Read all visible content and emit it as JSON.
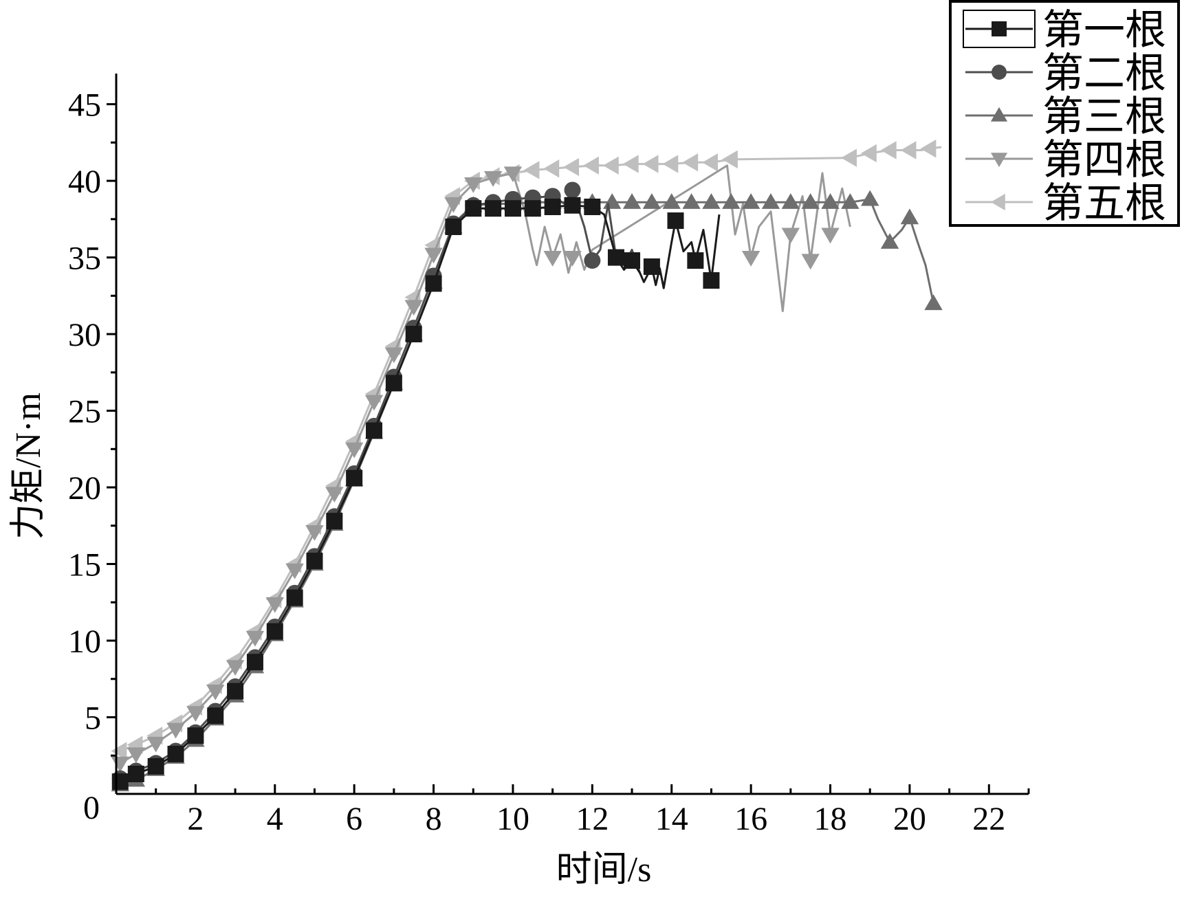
{
  "chart_data": {
    "type": "line",
    "xlabel": "时间/s",
    "ylabel": "力矩/N·m",
    "xlim": [
      0,
      23
    ],
    "ylim": [
      0,
      47
    ],
    "xticks": [
      2,
      4,
      6,
      8,
      10,
      12,
      14,
      16,
      18,
      20,
      22
    ],
    "yticks": [
      0,
      5,
      10,
      15,
      20,
      25,
      30,
      35,
      40,
      45
    ],
    "legend_position": "top-right",
    "series": [
      {
        "name": "第一根",
        "marker": "square",
        "color": "#1a1a1a",
        "x": [
          0.1,
          0.5,
          1.0,
          1.5,
          2.0,
          2.5,
          3.0,
          3.5,
          4.0,
          4.5,
          5.0,
          5.5,
          6.0,
          6.5,
          7.0,
          7.5,
          8.0,
          8.5,
          9.0,
          9.5,
          10.0,
          10.5,
          11.0,
          11.5,
          12.0,
          12.3,
          12.6,
          12.8,
          13.0,
          13.2,
          13.3,
          13.5,
          13.6,
          13.7,
          13.8,
          14.0,
          14.1,
          14.3,
          14.5,
          14.6,
          14.8,
          15.0,
          15.2
        ],
        "y": [
          0.8,
          1.3,
          1.8,
          2.6,
          3.8,
          5.1,
          6.7,
          8.6,
          10.6,
          12.8,
          15.2,
          17.8,
          20.6,
          23.7,
          26.8,
          30.0,
          33.3,
          37.0,
          38.2,
          38.2,
          38.2,
          38.2,
          38.3,
          38.4,
          38.3,
          37.8,
          35.0,
          34.2,
          34.8,
          34.0,
          33.4,
          34.4,
          33.2,
          34.3,
          33.0,
          36.0,
          37.4,
          35.4,
          36.0,
          34.8,
          36.8,
          33.5,
          37.8
        ],
        "markers_at": [
          0.1,
          0.5,
          1.0,
          1.5,
          2.0,
          2.5,
          3.0,
          3.5,
          4.0,
          4.5,
          5.0,
          5.5,
          6.0,
          6.5,
          7.0,
          7.5,
          8.0,
          8.5,
          9.0,
          9.5,
          10.0,
          10.5,
          11.0,
          11.5,
          12.0,
          12.6,
          13.0,
          13.5,
          14.1,
          14.6,
          15.0
        ]
      },
      {
        "name": "第二根",
        "marker": "circle",
        "color": "#4d4d4d",
        "x": [
          0.1,
          0.5,
          1.0,
          1.5,
          2.0,
          2.5,
          3.0,
          3.5,
          4.0,
          4.5,
          5.0,
          5.5,
          6.0,
          6.5,
          7.0,
          7.5,
          8.0,
          8.5,
          9.0,
          9.5,
          10.0,
          10.5,
          11.0,
          11.3,
          11.5,
          11.8,
          12.0,
          12.2,
          12.4,
          12.6,
          12.8,
          13.0,
          13.2
        ],
        "y": [
          1.0,
          1.5,
          2.0,
          2.8,
          4.0,
          5.4,
          7.0,
          8.9,
          10.9,
          13.1,
          15.5,
          18.1,
          20.9,
          24.0,
          27.2,
          30.4,
          33.8,
          37.2,
          38.4,
          38.6,
          38.8,
          38.9,
          39.0,
          38.5,
          39.4,
          37.0,
          34.8,
          35.5,
          38.5,
          35.0,
          34.5,
          35.5,
          34.0
        ],
        "markers_at": [
          0.1,
          0.5,
          1.0,
          1.5,
          2.0,
          2.5,
          3.0,
          3.5,
          4.0,
          4.5,
          5.0,
          5.5,
          6.0,
          6.5,
          7.0,
          7.5,
          8.0,
          8.5,
          9.0,
          9.5,
          10.0,
          10.5,
          11.0,
          11.5,
          12.0,
          12.6
        ]
      },
      {
        "name": "第三根",
        "marker": "triangle-up",
        "color": "#6e6e6e",
        "x": [
          0.1,
          0.5,
          1.0,
          1.5,
          2.0,
          2.5,
          3.0,
          3.5,
          4.0,
          4.5,
          5.0,
          5.5,
          6.0,
          6.5,
          7.0,
          7.5,
          8.0,
          8.5,
          9.0,
          9.5,
          10.0,
          10.5,
          11.0,
          11.5,
          12.0,
          12.5,
          13.0,
          13.5,
          14.0,
          14.5,
          15.0,
          15.5,
          16.0,
          16.5,
          17.0,
          17.5,
          18.0,
          18.5,
          19.0,
          19.2,
          19.5,
          19.8,
          20.0,
          20.2,
          20.4,
          20.6
        ],
        "y": [
          0.6,
          0.9,
          1.6,
          2.4,
          3.5,
          4.9,
          6.4,
          8.3,
          10.4,
          12.6,
          15.0,
          17.6,
          20.5,
          23.6,
          26.8,
          30.0,
          33.4,
          37.0,
          38.4,
          38.5,
          38.5,
          38.6,
          38.6,
          38.6,
          38.6,
          38.6,
          38.6,
          38.6,
          38.6,
          38.6,
          38.6,
          38.6,
          38.6,
          38.6,
          38.6,
          38.6,
          38.6,
          38.6,
          38.8,
          37.5,
          36.0,
          36.8,
          37.6,
          36.0,
          34.5,
          32.0
        ],
        "markers_at": [
          0.1,
          0.5,
          1.0,
          1.5,
          2.0,
          2.5,
          3.0,
          3.5,
          4.0,
          4.5,
          5.0,
          5.5,
          6.0,
          6.5,
          7.0,
          7.5,
          8.0,
          8.5,
          9.0,
          9.5,
          10.0,
          10.5,
          11.0,
          11.5,
          12.0,
          12.5,
          13.0,
          13.5,
          14.0,
          14.5,
          15.0,
          15.5,
          16.0,
          16.5,
          17.0,
          17.5,
          18.0,
          18.5,
          19.0,
          19.5,
          20.0,
          20.6
        ]
      },
      {
        "name": "第四根",
        "marker": "triangle-down",
        "color": "#999999",
        "x": [
          0.1,
          0.5,
          1.0,
          1.5,
          2.0,
          2.5,
          3.0,
          3.5,
          4.0,
          4.5,
          5.0,
          5.5,
          6.0,
          6.5,
          7.0,
          7.5,
          8.0,
          8.5,
          9.0,
          9.5,
          10.0,
          10.3,
          10.5,
          10.6,
          10.8,
          11.0,
          11.2,
          11.4,
          11.6,
          11.8,
          12.0,
          15.4,
          15.6,
          15.8,
          16.0,
          16.2,
          16.5,
          16.8,
          17.0,
          17.3,
          17.5,
          17.8,
          18.0,
          18.3,
          18.5
        ],
        "y": [
          2.0,
          2.6,
          3.3,
          4.2,
          5.3,
          6.7,
          8.3,
          10.2,
          12.4,
          14.6,
          17.1,
          19.6,
          22.5,
          25.6,
          28.7,
          31.8,
          35.2,
          38.5,
          39.8,
          40.2,
          40.5,
          38.0,
          35.5,
          34.5,
          37.0,
          35.0,
          36.5,
          34.0,
          36.0,
          34.2,
          35.5,
          41.0,
          36.5,
          38.5,
          35.0,
          37.0,
          38.0,
          31.5,
          36.5,
          39.0,
          34.8,
          40.5,
          36.5,
          39.5,
          37.0
        ],
        "markers_at": [
          0.1,
          0.5,
          1.0,
          1.5,
          2.0,
          2.5,
          3.0,
          3.5,
          4.0,
          4.5,
          5.0,
          5.5,
          6.0,
          6.5,
          7.0,
          7.5,
          8.0,
          8.5,
          9.0,
          9.5,
          10.0,
          11.0,
          11.5,
          16.0,
          17.0,
          17.5,
          18.0
        ]
      },
      {
        "name": "第五根",
        "marker": "triangle-left",
        "color": "#bfbfbf",
        "x": [
          0.1,
          0.5,
          1.0,
          1.5,
          2.0,
          2.5,
          3.0,
          3.5,
          4.0,
          4.5,
          5.0,
          5.5,
          6.0,
          6.5,
          7.0,
          7.5,
          8.0,
          8.5,
          9.0,
          9.5,
          10.0,
          10.5,
          11.0,
          11.5,
          12.0,
          12.5,
          13.0,
          13.5,
          14.0,
          14.5,
          15.0,
          15.5,
          18.5,
          19.0,
          19.5,
          20.0,
          20.3,
          20.5,
          20.8
        ],
        "y": [
          2.8,
          3.2,
          3.8,
          4.6,
          5.7,
          7.1,
          8.7,
          10.6,
          12.7,
          15.0,
          17.5,
          20.1,
          23.0,
          26.1,
          29.2,
          32.4,
          35.8,
          39.0,
          40.0,
          40.3,
          40.5,
          40.7,
          40.8,
          40.9,
          41.0,
          41.0,
          41.1,
          41.1,
          41.1,
          41.2,
          41.2,
          41.4,
          41.5,
          41.8,
          42.0,
          42.0,
          42.0,
          42.1,
          42.2
        ],
        "markers_at": [
          0.1,
          0.5,
          1.0,
          1.5,
          2.0,
          2.5,
          3.0,
          3.5,
          4.0,
          4.5,
          5.0,
          5.5,
          6.0,
          6.5,
          7.0,
          7.5,
          8.0,
          8.5,
          9.0,
          9.5,
          10.0,
          10.5,
          11.0,
          11.5,
          12.0,
          12.5,
          13.0,
          13.5,
          14.0,
          14.5,
          15.0,
          15.5,
          18.5,
          19.0,
          19.5,
          20.0,
          20.5
        ]
      }
    ]
  }
}
